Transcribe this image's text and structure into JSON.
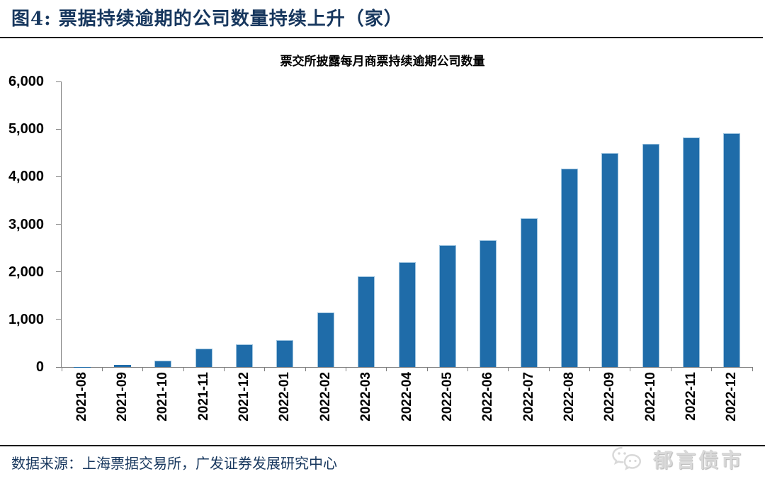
{
  "figure": {
    "title": "图4:  票据持续逾期的公司数量持续上升（家）",
    "source_label": "数据来源：",
    "source_text": "上海票据交易所，广发证券发展研究中心",
    "watermark": "郁言债市",
    "watermark_icon": "wechat-icon"
  },
  "colors": {
    "title_navy": "#17375E",
    "bar_fill": "#1F6CA9",
    "bar_border": "#9EC4DF",
    "axis_gray": "#808080",
    "watermark_gray": "#D9D9D9",
    "rule_black": "#1A1A1A"
  },
  "chart_data": {
    "type": "bar",
    "title": "票交所披露每月商票持续逾期公司数量",
    "categories": [
      "2021-08",
      "2021-09",
      "2021-10",
      "2021-11",
      "2021-12",
      "2022-01",
      "2022-02",
      "2022-03",
      "2022-04",
      "2022-05",
      "2022-06",
      "2022-07",
      "2022-08",
      "2022-09",
      "2022-10",
      "2022-11",
      "2022-12"
    ],
    "values": [
      5,
      40,
      130,
      380,
      470,
      560,
      1140,
      1900,
      2210,
      2560,
      2670,
      3120,
      4175,
      4490,
      4685,
      4825,
      4910
    ],
    "xlabel": "",
    "ylabel": "",
    "ylim": [
      0,
      6000
    ],
    "ytick_interval": 1000,
    "ytick_labels": [
      "0",
      "1,000",
      "2,000",
      "3,000",
      "4,000",
      "5,000",
      "6,000"
    ],
    "grid": false,
    "legend": "none",
    "x_tick_position": "between-categories",
    "x_label_rotation": -90
  }
}
